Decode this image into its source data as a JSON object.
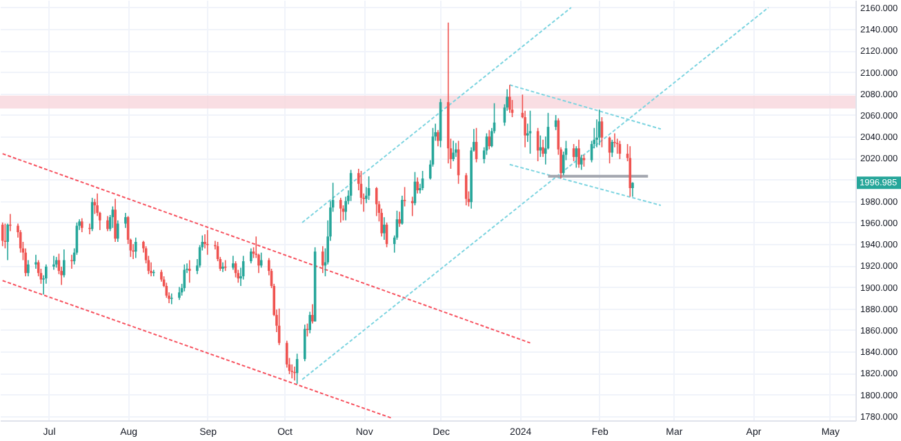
{
  "chart_data": {
    "type": "candlestick",
    "x": [
      "2023-06-13",
      "2023-06-14",
      "2023-06-15",
      "2023-06-16",
      "2023-06-19",
      "2023-06-20",
      "2023-06-21",
      "2023-06-22",
      "2023-06-23",
      "2023-06-26",
      "2023-06-27",
      "2023-06-28",
      "2023-06-29",
      "2023-06-30",
      "2023-07-03",
      "2023-07-04",
      "2023-07-05",
      "2023-07-06",
      "2023-07-07",
      "2023-07-10",
      "2023-07-11",
      "2023-07-12",
      "2023-07-13",
      "2023-07-14",
      "2023-07-17",
      "2023-07-18",
      "2023-07-19",
      "2023-07-20",
      "2023-07-21",
      "2023-07-24",
      "2023-07-25",
      "2023-07-26",
      "2023-07-27",
      "2023-07-28",
      "2023-07-31",
      "2023-08-01",
      "2023-08-02",
      "2023-08-03",
      "2023-08-04",
      "2023-08-07",
      "2023-08-08",
      "2023-08-09",
      "2023-08-10",
      "2023-08-11",
      "2023-08-14",
      "2023-08-15",
      "2023-08-16",
      "2023-08-17",
      "2023-08-18",
      "2023-08-21",
      "2023-08-22",
      "2023-08-23",
      "2023-08-24",
      "2023-08-25",
      "2023-08-28",
      "2023-08-29",
      "2023-08-30",
      "2023-08-31",
      "2023-09-01",
      "2023-09-04",
      "2023-09-05",
      "2023-09-06",
      "2023-09-07",
      "2023-09-08",
      "2023-09-11",
      "2023-09-12",
      "2023-09-13",
      "2023-09-14",
      "2023-09-15",
      "2023-09-18",
      "2023-09-19",
      "2023-09-20",
      "2023-09-21",
      "2023-09-22",
      "2023-09-25",
      "2023-09-26",
      "2023-09-27",
      "2023-09-28",
      "2023-09-29",
      "2023-10-02",
      "2023-10-03",
      "2023-10-04",
      "2023-10-05",
      "2023-10-06",
      "2023-10-09",
      "2023-10-10",
      "2023-10-11",
      "2023-10-12",
      "2023-10-13",
      "2023-10-16",
      "2023-10-17",
      "2023-10-18",
      "2023-10-19",
      "2023-10-20",
      "2023-10-23",
      "2023-10-24",
      "2023-10-25",
      "2023-10-26",
      "2023-10-27",
      "2023-10-30",
      "2023-10-31",
      "2023-11-01",
      "2023-11-02",
      "2023-11-03",
      "2023-11-06",
      "2023-11-07",
      "2023-11-08",
      "2023-11-09",
      "2023-11-10",
      "2023-11-13",
      "2023-11-14",
      "2023-11-15",
      "2023-11-16",
      "2023-11-17",
      "2023-11-20",
      "2023-11-21",
      "2023-11-22",
      "2023-11-23",
      "2023-11-24",
      "2023-11-27",
      "2023-11-28",
      "2023-11-29",
      "2023-11-30",
      "2023-12-01",
      "2023-12-04",
      "2023-12-05",
      "2023-12-06",
      "2023-12-07",
      "2023-12-08",
      "2023-12-11",
      "2023-12-12",
      "2023-12-13",
      "2023-12-14",
      "2023-12-15",
      "2023-12-18",
      "2023-12-19",
      "2023-12-20",
      "2023-12-21",
      "2023-12-22",
      "2023-12-26",
      "2023-12-27",
      "2023-12-28",
      "2023-12-29",
      "2024-01-02",
      "2024-01-03",
      "2024-01-04",
      "2024-01-05",
      "2024-01-08",
      "2024-01-09",
      "2024-01-10",
      "2024-01-11",
      "2024-01-12",
      "2024-01-15",
      "2024-01-16",
      "2024-01-17",
      "2024-01-18",
      "2024-01-19",
      "2024-01-22",
      "2024-01-23",
      "2024-01-24",
      "2024-01-25",
      "2024-01-26",
      "2024-01-29",
      "2024-01-30",
      "2024-01-31",
      "2024-02-01",
      "2024-02-02",
      "2024-02-05",
      "2024-02-06",
      "2024-02-07",
      "2024-02-08",
      "2024-02-09",
      "2024-02-12",
      "2024-02-13",
      "2024-02-14"
    ],
    "ohlc": [
      [
        1958,
        1960,
        1938,
        1943
      ],
      [
        1943,
        1959,
        1936,
        1942
      ],
      [
        1942,
        1959,
        1925,
        1958
      ],
      [
        1958,
        1968,
        1952,
        1957
      ],
      [
        1957,
        1959,
        1946,
        1951
      ],
      [
        1951,
        1953,
        1932,
        1936
      ],
      [
        1936,
        1942,
        1925,
        1932
      ],
      [
        1932,
        1936,
        1910,
        1913
      ],
      [
        1913,
        1925,
        1910,
        1921
      ],
      [
        1921,
        1930,
        1917,
        1923
      ],
      [
        1923,
        1925,
        1910,
        1913
      ],
      [
        1913,
        1917,
        1903,
        1907
      ],
      [
        1907,
        1911,
        1893,
        1908
      ],
      [
        1908,
        1921,
        1903,
        1919
      ],
      [
        1919,
        1929,
        1916,
        1921
      ],
      [
        1921,
        1928,
        1918,
        1925
      ],
      [
        1925,
        1931,
        1912,
        1915
      ],
      [
        1915,
        1919,
        1902,
        1911
      ],
      [
        1911,
        1935,
        1909,
        1925
      ],
      [
        1925,
        1930,
        1917,
        1924
      ],
      [
        1924,
        1936,
        1921,
        1932
      ],
      [
        1932,
        1960,
        1930,
        1957
      ],
      [
        1957,
        1963,
        1953,
        1961
      ],
      [
        1961,
        1964,
        1951,
        1955
      ],
      [
        1955,
        1959,
        1949,
        1954
      ],
      [
        1954,
        1983,
        1952,
        1979
      ],
      [
        1979,
        1982,
        1968,
        1976
      ],
      [
        1976,
        1987,
        1966,
        1969
      ],
      [
        1969,
        1970,
        1953,
        1962
      ],
      [
        1962,
        1966,
        1952,
        1954
      ],
      [
        1954,
        1967,
        1952,
        1965
      ],
      [
        1965,
        1975,
        1955,
        1972
      ],
      [
        1972,
        1982,
        1942,
        1945
      ],
      [
        1945,
        1962,
        1942,
        1959
      ],
      [
        1959,
        1969,
        1955,
        1965
      ],
      [
        1965,
        1966,
        1940,
        1944
      ],
      [
        1944,
        1945,
        1928,
        1934
      ],
      [
        1934,
        1940,
        1926,
        1933
      ],
      [
        1933,
        1946,
        1927,
        1942
      ],
      [
        1942,
        1943,
        1932,
        1936
      ],
      [
        1936,
        1938,
        1922,
        1925
      ],
      [
        1925,
        1929,
        1912,
        1915
      ],
      [
        1915,
        1923,
        1910,
        1913
      ],
      [
        1913,
        1916,
        1910,
        1914
      ],
      [
        1914,
        1916,
        1905,
        1907
      ],
      [
        1907,
        1910,
        1900,
        1901
      ],
      [
        1901,
        1904,
        1890,
        1892
      ],
      [
        1892,
        1895,
        1885,
        1889
      ],
      [
        1889,
        1894,
        1884,
        1890
      ],
      [
        1890,
        1900,
        1888,
        1895
      ],
      [
        1895,
        1903,
        1892,
        1899
      ],
      [
        1899,
        1921,
        1896,
        1916
      ],
      [
        1916,
        1922,
        1913,
        1917
      ],
      [
        1917,
        1925,
        1904,
        1915
      ],
      [
        1915,
        1926,
        1912,
        1920
      ],
      [
        1920,
        1939,
        1918,
        1937
      ],
      [
        1937,
        1948,
        1934,
        1942
      ],
      [
        1942,
        1949,
        1936,
        1940
      ],
      [
        1940,
        1953,
        1930,
        1939
      ],
      [
        1939,
        1943,
        1935,
        1938
      ],
      [
        1938,
        1942,
        1924,
        1926
      ],
      [
        1926,
        1928,
        1915,
        1917
      ],
      [
        1917,
        1923,
        1914,
        1919
      ],
      [
        1919,
        1925,
        1915,
        1918
      ],
      [
        1918,
        1929,
        1916,
        1922
      ],
      [
        1922,
        1924,
        1909,
        1913
      ],
      [
        1913,
        1916,
        1904,
        1908
      ],
      [
        1908,
        1918,
        1901,
        1910
      ],
      [
        1910,
        1929,
        1907,
        1924
      ],
      [
        1924,
        1936,
        1922,
        1933
      ],
      [
        1933,
        1937,
        1927,
        1931
      ],
      [
        1931,
        1947,
        1927,
        1930
      ],
      [
        1930,
        1931,
        1913,
        1920
      ],
      [
        1920,
        1932,
        1918,
        1925
      ],
      [
        1925,
        1927,
        1911,
        1915
      ],
      [
        1915,
        1917,
        1899,
        1901
      ],
      [
        1901,
        1903,
        1873,
        1874
      ],
      [
        1874,
        1879,
        1858,
        1864
      ],
      [
        1864,
        1880,
        1846,
        1848
      ],
      [
        1848,
        1850,
        1825,
        1828
      ],
      [
        1828,
        1834,
        1819,
        1822
      ],
      [
        1822,
        1828,
        1815,
        1821
      ],
      [
        1821,
        1826,
        1813,
        1820
      ],
      [
        1820,
        1838,
        1810,
        1833
      ],
      [
        1833,
        1865,
        1831,
        1861
      ],
      [
        1861,
        1866,
        1854,
        1860
      ],
      [
        1860,
        1877,
        1857,
        1874
      ],
      [
        1874,
        1884,
        1866,
        1868
      ],
      [
        1868,
        1937,
        1868,
        1933
      ],
      [
        1933,
        1938,
        1913,
        1920
      ],
      [
        1920,
        1936,
        1910,
        1923
      ],
      [
        1923,
        1962,
        1921,
        1947
      ],
      [
        1947,
        1980,
        1943,
        1974
      ],
      [
        1974,
        1997,
        1970,
        1981
      ],
      [
        1981,
        1983,
        1960,
        1973
      ],
      [
        1973,
        1976,
        1962,
        1970
      ],
      [
        1970,
        1984,
        1962,
        1980
      ],
      [
        1980,
        1990,
        1977,
        1985
      ],
      [
        1985,
        2009,
        1980,
        2006
      ],
      [
        2006,
        2010,
        1990,
        1996
      ],
      [
        1996,
        2008,
        1977,
        1983
      ],
      [
        1983,
        1987,
        1970,
        1982
      ],
      [
        1982,
        1993,
        1978,
        1985
      ],
      [
        1985,
        2003,
        1981,
        1992
      ],
      [
        1992,
        1993,
        1966,
        1977
      ],
      [
        1977,
        1980,
        1961,
        1969
      ],
      [
        1969,
        1973,
        1947,
        1950
      ],
      [
        1950,
        1965,
        1944,
        1958
      ],
      [
        1958,
        1960,
        1937,
        1940
      ],
      [
        1940,
        1948,
        1932,
        1946
      ],
      [
        1946,
        1971,
        1944,
        1963
      ],
      [
        1963,
        1970,
        1956,
        1959
      ],
      [
        1959,
        1985,
        1958,
        1981
      ],
      [
        1981,
        1993,
        1975,
        1980
      ],
      [
        1980,
        1984,
        1966,
        1978
      ],
      [
        1978,
        2007,
        1976,
        1998
      ],
      [
        1998,
        2002,
        1987,
        1990
      ],
      [
        1990,
        1996,
        1987,
        1992
      ],
      [
        1992,
        2008,
        1990,
        2001
      ],
      [
        2001,
        2018,
        2000,
        2014
      ],
      [
        2014,
        2048,
        2012,
        2040
      ],
      [
        2040,
        2052,
        2036,
        2044
      ],
      [
        2044,
        2046,
        2031,
        2036
      ],
      [
        2036,
        2075,
        2030,
        2072
      ],
      [
        2072,
        2146,
        2015,
        2029
      ],
      [
        2029,
        2038,
        2010,
        2019
      ],
      [
        2019,
        2036,
        2017,
        2025
      ],
      [
        2025,
        2034,
        2021,
        2028
      ],
      [
        2028,
        2036,
        1996,
        2004
      ],
      [
        2004,
        2006,
        1976,
        1982
      ],
      [
        1982,
        1989,
        1975,
        1979
      ],
      [
        1979,
        2030,
        1973,
        2027
      ],
      [
        2027,
        2047,
        2026,
        2035
      ],
      [
        2035,
        2048,
        2016,
        2019
      ],
      [
        2019,
        2030,
        2015,
        2027
      ],
      [
        2027,
        2043,
        2023,
        2040
      ],
      [
        2040,
        2046,
        2028,
        2031
      ],
      [
        2031,
        2048,
        2030,
        2045
      ],
      [
        2045,
        2071,
        2043,
        2053
      ],
      [
        2053,
        2070,
        2050,
        2067
      ],
      [
        2067,
        2084,
        2064,
        2077
      ],
      [
        2077,
        2088,
        2062,
        2065
      ],
      [
        2065,
        2074,
        2058,
        2062
      ],
      [
        2062,
        2079,
        2057,
        2058
      ],
      [
        2058,
        2064,
        2030,
        2041
      ],
      [
        2041,
        2052,
        2035,
        2043
      ],
      [
        2043,
        2064,
        2024,
        2045
      ],
      [
        2045,
        2048,
        2017,
        2027
      ],
      [
        2027,
        2041,
        2021,
        2030
      ],
      [
        2030,
        2037,
        2021,
        2024
      ],
      [
        2024,
        2040,
        2014,
        2029
      ],
      [
        2029,
        2062,
        2028,
        2049
      ],
      [
        2049,
        2060,
        2046,
        2055
      ],
      [
        2055,
        2057,
        2023,
        2028
      ],
      [
        2028,
        2030,
        2001,
        2006
      ],
      [
        2006,
        2026,
        2004,
        2023
      ],
      [
        2023,
        2036,
        2018,
        2029
      ],
      [
        2029,
        2033,
        2017,
        2021
      ],
      [
        2021,
        2031,
        2011,
        2029
      ],
      [
        2029,
        2037,
        2011,
        2014
      ],
      [
        2014,
        2023,
        2009,
        2020
      ],
      [
        2020,
        2023,
        2012,
        2018
      ],
      [
        2018,
        2036,
        2016,
        2033
      ],
      [
        2033,
        2048,
        2029,
        2037
      ],
      [
        2037,
        2056,
        2030,
        2039
      ],
      [
        2039,
        2065,
        2032,
        2054
      ],
      [
        2054,
        2058,
        2030,
        2039
      ],
      [
        2039,
        2040,
        2015,
        2025
      ],
      [
        2025,
        2037,
        2021,
        2035
      ],
      [
        2035,
        2043,
        2030,
        2034
      ],
      [
        2034,
        2038,
        2024,
        2033
      ],
      [
        2033,
        2036,
        2019,
        2024
      ],
      [
        2024,
        2033,
        2017,
        2020
      ],
      [
        2020,
        2031,
        1984,
        1992
      ],
      [
        1992,
        1997.5,
        1984,
        1996.985
      ]
    ],
    "series": [
      {
        "type": "line",
        "color": "#f7525f",
        "x": [
          "2023-06-13",
          "2024-01-05"
        ],
        "values": [
          2024,
          1848
        ]
      },
      {
        "type": "line",
        "color": "#f7525f",
        "x": [
          "2023-06-13",
          "2023-11-12"
        ],
        "values": [
          1906,
          1778
        ]
      },
      {
        "type": "line",
        "color": "#7cd4e0",
        "x": [
          "2023-10-08",
          "2024-01-21"
        ],
        "values": [
          1960,
          2160
        ]
      },
      {
        "type": "line",
        "color": "#7cd4e0",
        "x": [
          "2023-10-08",
          "2024-04-07"
        ],
        "values": [
          1814,
          2160
        ]
      },
      {
        "type": "line",
        "color": "#7cd4e0",
        "x": [
          "2023-12-28",
          "2024-02-25"
        ],
        "values": [
          2088,
          2047
        ]
      },
      {
        "type": "line",
        "color": "#7cd4e0",
        "x": [
          "2023-12-28",
          "2024-02-25"
        ],
        "values": [
          2014,
          1976
        ]
      },
      {
        "type": "line",
        "color": "#a3a6af",
        "line_style": "solid",
        "x": [
          "2024-01-12",
          "2024-02-20"
        ],
        "values": [
          2003,
          2003
        ]
      }
    ],
    "line_style": "dashed",
    "bands": [
      {
        "axis": "y",
        "from": 2066,
        "to": 2078,
        "color": "#f8d6dc"
      }
    ],
    "annotations": [
      "1996.985"
    ],
    "xlim": [
      "2023-06-12",
      "2024-05-11"
    ],
    "xticks": [
      {
        "value": "2023-07-01",
        "label": "Jul"
      },
      {
        "value": "2023-08-01",
        "label": "Aug"
      },
      {
        "value": "2023-09-01",
        "label": "Sep"
      },
      {
        "value": "2023-10-01",
        "label": "Oct"
      },
      {
        "value": "2023-11-01",
        "label": "Nov"
      },
      {
        "value": "2023-12-01",
        "label": "Dec"
      },
      {
        "value": "2024-01-01",
        "label": "2024"
      },
      {
        "value": "2024-02-01",
        "label": "Feb"
      },
      {
        "value": "2024-03-01",
        "label": "Mar"
      },
      {
        "value": "2024-04-01",
        "label": "Apr"
      },
      {
        "value": "2024-05-01",
        "label": "May"
      }
    ],
    "ylim": [
      1776,
      2167
    ],
    "yticks": [
      {
        "value": 1780,
        "label": "1780.000"
      },
      {
        "value": 1800,
        "label": "1800.000"
      },
      {
        "value": 1820,
        "label": "1820.000"
      },
      {
        "value": 1840,
        "label": "1840.000"
      },
      {
        "value": 1860,
        "label": "1860.000"
      },
      {
        "value": 1880,
        "label": "1880.000"
      },
      {
        "value": 1900,
        "label": "1900.000"
      },
      {
        "value": 1920,
        "label": "1920.000"
      },
      {
        "value": 1940,
        "label": "1940.000"
      },
      {
        "value": 1960,
        "label": "1960.000"
      },
      {
        "value": 1980,
        "label": "1980.000"
      },
      {
        "value": 2000,
        "label": null
      },
      {
        "value": 2020,
        "label": "2020.000"
      },
      {
        "value": 2040,
        "label": "2040.000"
      },
      {
        "value": 2060,
        "label": "2060.000"
      },
      {
        "value": 2080,
        "label": "2080.000"
      },
      {
        "value": 2100,
        "label": "2100.000"
      },
      {
        "value": 2120,
        "label": "2120.000"
      },
      {
        "value": 2140,
        "label": "2140.000"
      },
      {
        "value": 2160,
        "label": "2160.000"
      }
    ],
    "grid": true
  }
}
